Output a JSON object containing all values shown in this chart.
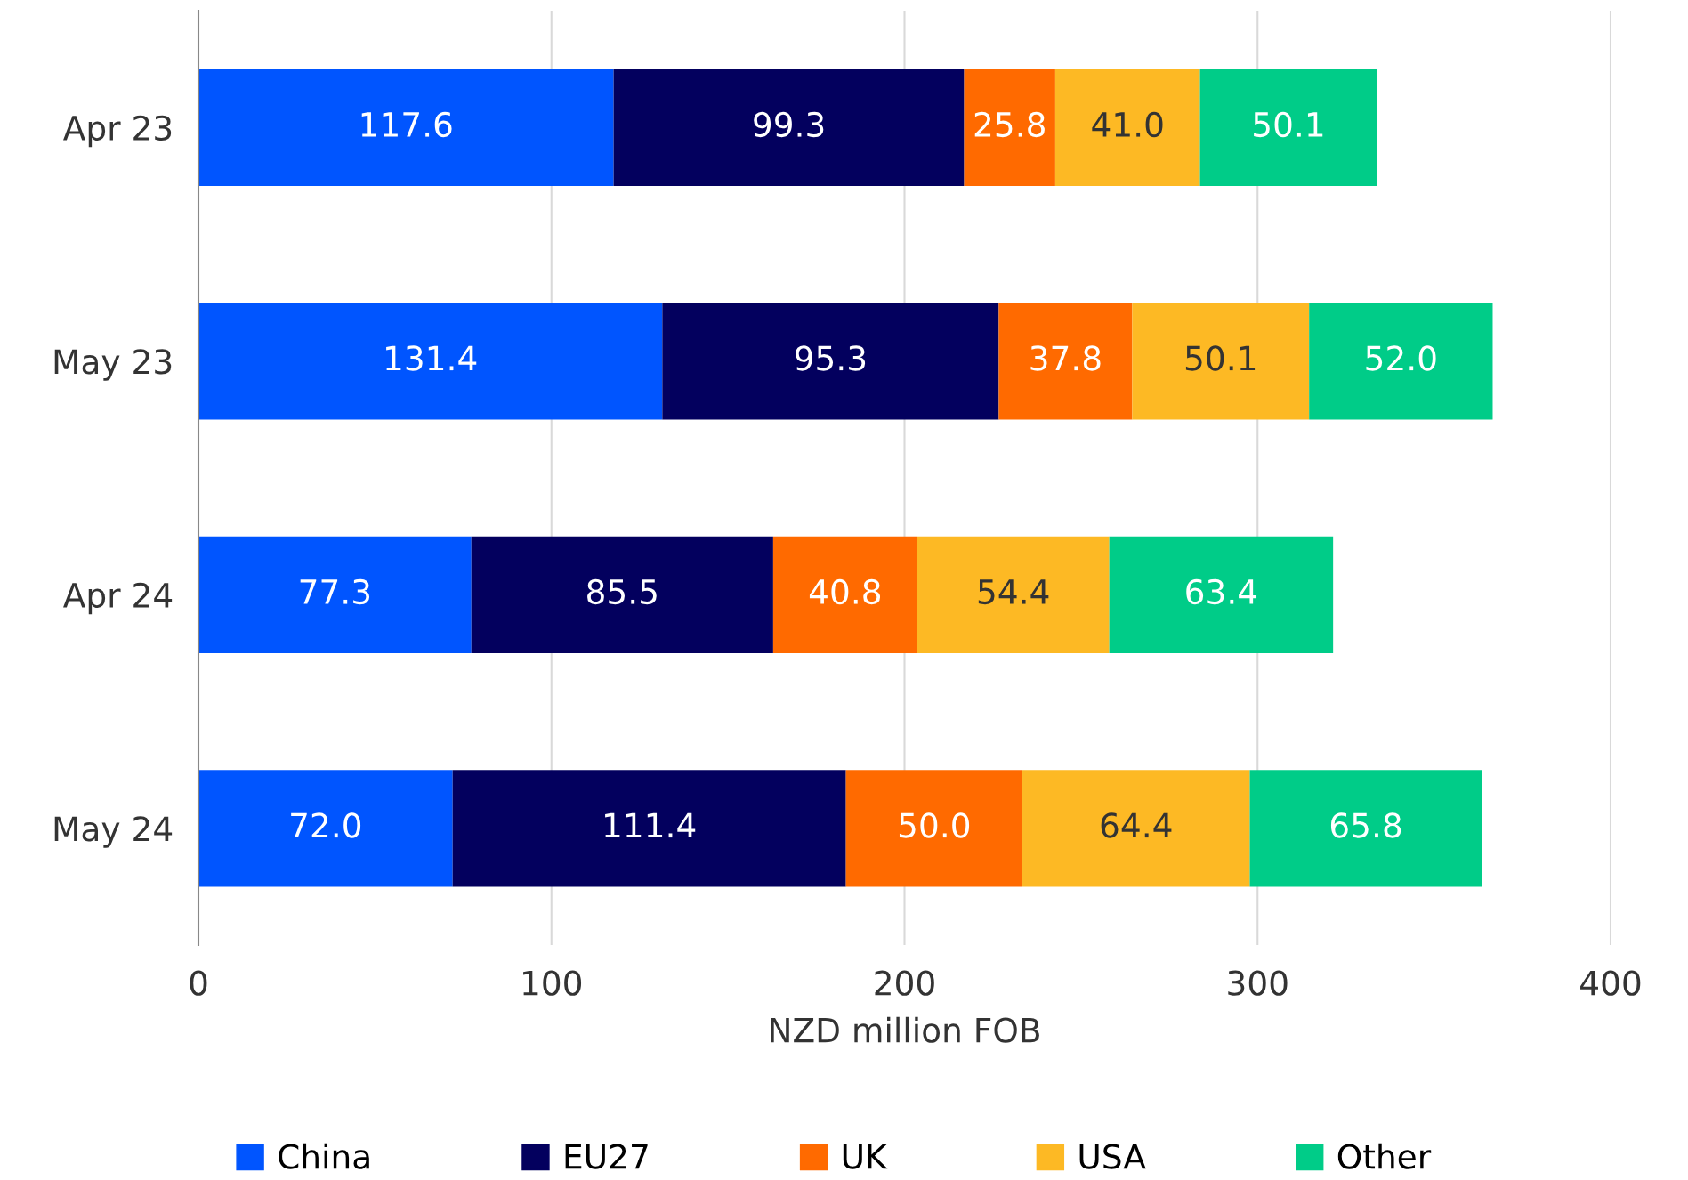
{
  "chart_data": {
    "type": "bar",
    "orientation": "horizontal",
    "stacked": true,
    "grid": "x",
    "legend": "bottom",
    "xlabel": "NZD million FOB",
    "categories": [
      "Apr 23",
      "May 23",
      "Apr 24",
      "May 24"
    ],
    "xlim": [
      0,
      400
    ],
    "xticks": [
      0,
      100,
      200,
      300,
      400
    ],
    "series": [
      {
        "name": "China",
        "color": "#0055ff",
        "values": [
          117.6,
          131.4,
          77.3,
          72.0
        ],
        "value_labels": [
          "117.6",
          "131.4",
          "77.3",
          "72.0"
        ]
      },
      {
        "name": "EU27",
        "color": "#03005e",
        "values": [
          99.3,
          95.3,
          85.5,
          111.4
        ],
        "value_labels": [
          "99.3",
          "95.3",
          "85.5",
          "111.4"
        ]
      },
      {
        "name": "UK",
        "color": "#ff6a00",
        "values": [
          25.8,
          37.8,
          40.8,
          50.0
        ],
        "value_labels": [
          "25.8",
          "37.8",
          "40.8",
          "50.0"
        ]
      },
      {
        "name": "USA",
        "color": "#fdb924",
        "values": [
          41.0,
          50.1,
          54.4,
          64.4
        ],
        "value_labels": [
          "41.0",
          "50.1",
          "54.4",
          "64.4"
        ]
      },
      {
        "name": "Other",
        "color": "#00cc88",
        "values": [
          50.1,
          52.0,
          63.4,
          65.8
        ],
        "value_labels": [
          "50.1",
          "52.0",
          "63.4",
          "65.8"
        ]
      }
    ]
  }
}
